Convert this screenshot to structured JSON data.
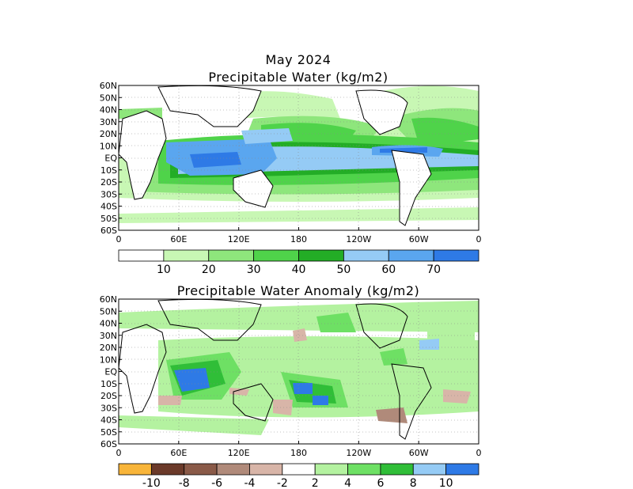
{
  "chart_data": [
    {
      "type": "heatmap",
      "title": "May 2024",
      "subtitle": "Precipitable Water (kg/m2)",
      "lat_ticks": [
        "60N",
        "50N",
        "40N",
        "30N",
        "20N",
        "10N",
        "EQ",
        "10S",
        "20S",
        "30S",
        "40S",
        "50S",
        "60S"
      ],
      "lon_ticks": [
        "0",
        "60E",
        "120E",
        "180",
        "120W",
        "60W",
        "0"
      ],
      "ylim": [
        -60,
        60
      ],
      "xlim": [
        0,
        360
      ],
      "grid": true,
      "colorbar": {
        "labels": [
          "10",
          "20",
          "30",
          "40",
          "50",
          "60",
          "70"
        ],
        "colors": [
          "#ffffff",
          "#c8f7b4",
          "#8ee67c",
          "#4fd34a",
          "#23ad26",
          "#95cbf5",
          "#5aa6ef",
          "#2e7ae6"
        ]
      },
      "regions": [
        {
          "lat": [
            -5,
            15
          ],
          "lon": [
            60,
            150
          ],
          "level": "60-70"
        },
        {
          "lat": [
            -10,
            10
          ],
          "lon": [
            150,
            260
          ],
          "level": "50-60"
        },
        {
          "lat": [
            0,
            10
          ],
          "lon": [
            260,
            300
          ],
          "level": "60-70"
        },
        {
          "lat": [
            15,
            35
          ],
          "lon": [
            120,
            260
          ],
          "level": "30-40"
        },
        {
          "lat": [
            -35,
            -20
          ],
          "lon": [
            0,
            360
          ],
          "level": "10-20"
        },
        {
          "lat": [
            -60,
            -45
          ],
          "lon": [
            0,
            360
          ],
          "level": "0-10"
        }
      ]
    },
    {
      "type": "heatmap",
      "title": "Precipitable Water Anomaly (kg/m2)",
      "lat_ticks": [
        "60N",
        "50N",
        "40N",
        "30N",
        "20N",
        "10N",
        "EQ",
        "10S",
        "20S",
        "30S",
        "40S",
        "50S",
        "60S"
      ],
      "lon_ticks": [
        "0",
        "60E",
        "120E",
        "180",
        "120W",
        "60W",
        "0"
      ],
      "ylim": [
        -60,
        60
      ],
      "xlim": [
        0,
        360
      ],
      "grid": true,
      "colorbar": {
        "labels": [
          "-10",
          "-8",
          "-6",
          "-4",
          "-2",
          "2",
          "4",
          "6",
          "8",
          "10"
        ],
        "colors": [
          "#f8b53a",
          "#6b3a2a",
          "#8a5a48",
          "#b08a7a",
          "#d8b5a8",
          "#ffffff",
          "#b4f2a0",
          "#6ee064",
          "#30be38",
          "#95cbf5",
          "#2e7ae6"
        ]
      },
      "regions": [
        {
          "lat": [
            -25,
            -5
          ],
          "lon": [
            50,
            90
          ],
          "level": "8-10"
        },
        {
          "lat": [
            -30,
            -20
          ],
          "lon": [
            190,
            215
          ],
          "level": "8-10"
        },
        {
          "lat": [
            -45,
            -35
          ],
          "lon": [
            225,
            265
          ],
          "level": "-6 to -4"
        },
        {
          "lat": [
            20,
            30
          ],
          "lon": [
            140,
            160
          ],
          "level": "-4 to -2"
        },
        {
          "lat": [
            -20,
            -10
          ],
          "lon": [
            270,
            300
          ],
          "level": "-4 to -2"
        }
      ]
    }
  ]
}
